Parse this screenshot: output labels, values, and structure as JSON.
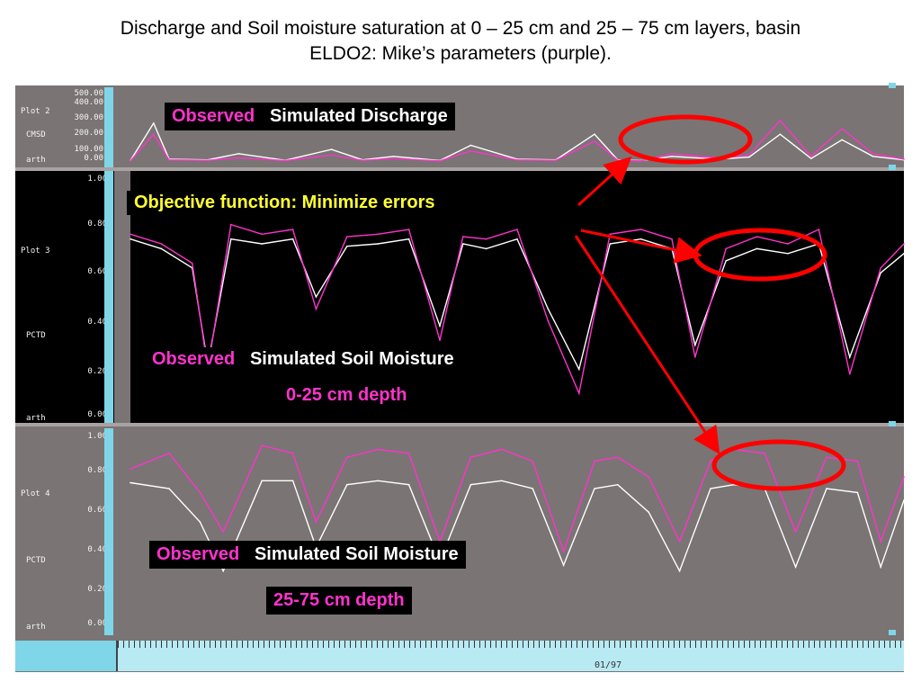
{
  "title_lines": [
    "Discharge and Soil moisture saturation at 0 – 25 cm and 25 – 75 cm layers, basin",
    "ELDO2: Mike’s parameters (purple)."
  ],
  "colors": {
    "observed": "#ff33cc",
    "simulated": "#ffffff",
    "arrow": "#ff0000",
    "plot_bg_gray": "#7a7474",
    "plot_bg_black": "#000000",
    "annotation_yellow": "#ffff33"
  },
  "panels": {
    "p2": {
      "label": "Plot 2",
      "unit": "CMSD",
      "footer": "arth",
      "ticks": [
        "500.00",
        "400.00",
        "300.00",
        "200.00",
        "100.00",
        "0.00"
      ]
    },
    "p3": {
      "label": "Plot 3",
      "unit": "PCTD",
      "footer": "arth",
      "ticks": [
        "1.00",
        "0.80",
        "0.60",
        "0.40",
        "0.20",
        "0.00"
      ]
    },
    "p4": {
      "label": "Plot 4",
      "unit": "PCTD",
      "footer": "arth",
      "ticks": [
        "1.00",
        "0.80",
        "0.60",
        "0.40",
        "0.20",
        "0.00"
      ]
    }
  },
  "annotations": {
    "discharge_observed": "Observed",
    "discharge_simulated": "Simulated Discharge",
    "objective": "Objective function: Minimize errors",
    "sm1_observed": "Observed",
    "sm1_simulated": "Simulated Soil Moisture",
    "sm1_depth": "0-25 cm depth",
    "sm2_observed": "Observed",
    "sm2_simulated": "Simulated Soil Moisture",
    "sm2_depth": "25-75 cm depth"
  },
  "time_axis": {
    "label": "01/97"
  },
  "chart_data": [
    {
      "type": "line",
      "panel": "Plot 2",
      "ylabel": "CMSD",
      "ylim": [
        0,
        500
      ],
      "x": [
        0,
        0.03,
        0.05,
        0.1,
        0.14,
        0.2,
        0.26,
        0.3,
        0.34,
        0.4,
        0.44,
        0.5,
        0.55,
        0.6,
        0.63,
        0.66,
        0.7,
        0.76,
        0.8,
        0.84,
        0.88,
        0.92,
        0.96,
        1.0
      ],
      "series": [
        {
          "name": "Simulated Discharge",
          "values": [
            10,
            280,
            20,
            15,
            60,
            12,
            90,
            15,
            40,
            10,
            120,
            20,
            15,
            200,
            15,
            10,
            40,
            20,
            35,
            200,
            25,
            160,
            40,
            15
          ]
        },
        {
          "name": "Observed",
          "values": [
            8,
            200,
            15,
            12,
            30,
            10,
            50,
            12,
            25,
            8,
            80,
            15,
            12,
            150,
            12,
            8,
            60,
            30,
            50,
            300,
            40,
            240,
            60,
            20
          ]
        }
      ]
    },
    {
      "type": "line",
      "panel": "Plot 3",
      "ylabel": "PCTD",
      "ylim": [
        0,
        1
      ],
      "x": [
        0,
        0.04,
        0.08,
        0.1,
        0.13,
        0.17,
        0.21,
        0.24,
        0.28,
        0.32,
        0.36,
        0.4,
        0.43,
        0.46,
        0.5,
        0.54,
        0.58,
        0.62,
        0.66,
        0.7,
        0.73,
        0.77,
        0.81,
        0.85,
        0.89,
        0.93,
        0.97,
        1.0
      ],
      "series": [
        {
          "name": "Simulated",
          "values": [
            0.74,
            0.7,
            0.62,
            0.22,
            0.74,
            0.72,
            0.74,
            0.5,
            0.71,
            0.72,
            0.74,
            0.38,
            0.72,
            0.7,
            0.74,
            0.45,
            0.2,
            0.72,
            0.74,
            0.7,
            0.3,
            0.65,
            0.7,
            0.68,
            0.72,
            0.25,
            0.6,
            0.68
          ]
        },
        {
          "name": "Observed",
          "values": [
            0.76,
            0.72,
            0.64,
            0.2,
            0.8,
            0.76,
            0.78,
            0.45,
            0.75,
            0.76,
            0.78,
            0.32,
            0.75,
            0.74,
            0.78,
            0.4,
            0.1,
            0.76,
            0.78,
            0.74,
            0.25,
            0.7,
            0.75,
            0.72,
            0.78,
            0.18,
            0.62,
            0.72
          ]
        }
      ]
    },
    {
      "type": "line",
      "panel": "Plot 4",
      "ylabel": "PCTD",
      "ylim": [
        0,
        1
      ],
      "x": [
        0,
        0.05,
        0.09,
        0.12,
        0.17,
        0.21,
        0.24,
        0.28,
        0.32,
        0.36,
        0.4,
        0.44,
        0.48,
        0.52,
        0.56,
        0.6,
        0.63,
        0.67,
        0.71,
        0.75,
        0.78,
        0.82,
        0.86,
        0.9,
        0.94,
        0.97,
        1.0
      ],
      "series": [
        {
          "name": "Simulated",
          "values": [
            0.75,
            0.72,
            0.55,
            0.3,
            0.76,
            0.76,
            0.42,
            0.74,
            0.76,
            0.74,
            0.35,
            0.74,
            0.76,
            0.72,
            0.33,
            0.72,
            0.74,
            0.6,
            0.3,
            0.72,
            0.74,
            0.72,
            0.32,
            0.72,
            0.7,
            0.32,
            0.66
          ]
        },
        {
          "name": "Observed",
          "values": [
            0.82,
            0.9,
            0.7,
            0.5,
            0.94,
            0.9,
            0.55,
            0.88,
            0.92,
            0.9,
            0.45,
            0.88,
            0.92,
            0.86,
            0.4,
            0.86,
            0.88,
            0.78,
            0.45,
            0.86,
            0.92,
            0.9,
            0.5,
            0.88,
            0.86,
            0.45,
            0.78
          ]
        }
      ]
    }
  ]
}
